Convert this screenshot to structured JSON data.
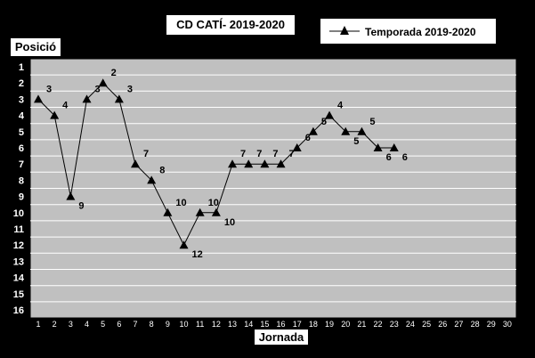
{
  "chart_data": {
    "type": "line",
    "title": "CD CATÍ- 2019-2020",
    "xlabel": "Jornada",
    "ylabel": "Posició",
    "x_ticks": [
      "1",
      "2",
      "3",
      "4",
      "5",
      "6",
      "7",
      "8",
      "9",
      "10",
      "11",
      "12",
      "13",
      "14",
      "15",
      "16",
      "17",
      "18",
      "19",
      "20",
      "21",
      "22",
      "23",
      "24",
      "25",
      "26",
      "27",
      "28",
      "29",
      "30"
    ],
    "y_ticks": [
      "1",
      "2",
      "3",
      "4",
      "5",
      "6",
      "7",
      "8",
      "9",
      "10",
      "11",
      "12",
      "13",
      "14",
      "15",
      "16"
    ],
    "xlim": [
      1,
      30
    ],
    "ylim": [
      1,
      16
    ],
    "y_inverted": true,
    "grid": "horizontal",
    "legend": "top-right",
    "series": [
      {
        "name": "Temporada 2019-2020",
        "color": "#000000",
        "marker": "triangle",
        "x": [
          1,
          2,
          3,
          4,
          5,
          6,
          7,
          8,
          9,
          10,
          11,
          12,
          13,
          14,
          15,
          16,
          17,
          18,
          19,
          20,
          21,
          22,
          23
        ],
        "values": [
          3,
          4,
          9,
          3,
          2,
          3,
          7,
          8,
          10,
          12,
          10,
          10,
          7,
          7,
          7,
          7,
          6,
          5,
          4,
          5,
          5,
          6,
          6
        ],
        "labels": [
          "3",
          "4",
          "9",
          "3",
          "2",
          "3",
          "7",
          "8",
          "10",
          "12",
          "10",
          "10",
          "7",
          "7",
          "7",
          "7",
          "6",
          "5",
          "4",
          "5",
          "5",
          "6",
          "6"
        ]
      }
    ]
  },
  "colors": {
    "background": "#000000",
    "plot_area": "#c0c0c0",
    "grid": "#ffffff"
  }
}
